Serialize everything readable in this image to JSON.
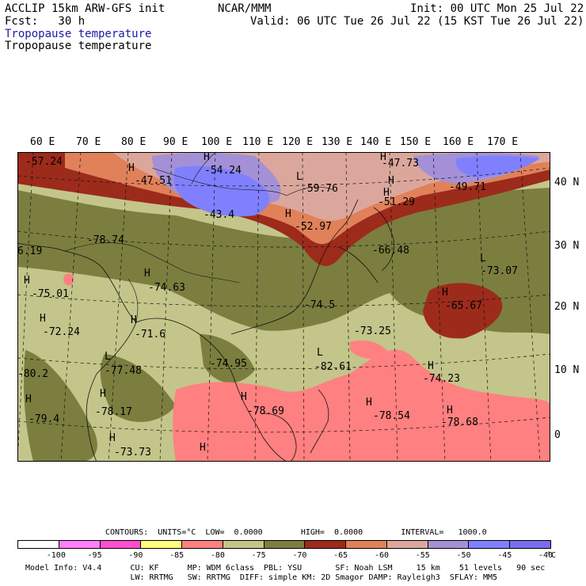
{
  "header": {
    "line1_left": "ACCLIP 15km ARW-GFS init",
    "line1_mid": "NCAR/MMM",
    "line1_right": "Init: 00 UTC Mon 25 Jul 22",
    "line2_left": "Fcst:   30 h",
    "line2_right": "Valid: 06 UTC Tue 26 Jul 22 (15 KST Tue 26 Jul 22)",
    "field1": "Tropopause temperature",
    "field2": "Tropopause temperature"
  },
  "map": {
    "lon_labels": [
      "60 E",
      "70 E",
      "80 E",
      "90 E",
      "100 E",
      "110 E",
      "120 E",
      "130 E",
      "140 E",
      "150 E",
      "160 E",
      "170 E"
    ],
    "lat_labels": [
      "40 N",
      "30 N",
      "20 N",
      "10 N",
      "0"
    ],
    "annotations": [
      {
        "text": "-57.24"
      },
      {
        "text": "H"
      },
      {
        "text": "-47.51"
      },
      {
        "text": "H"
      },
      {
        "text": "-54.24"
      },
      {
        "text": "L"
      },
      {
        "text": "-59.76"
      },
      {
        "text": "H"
      },
      {
        "text": "-47.73"
      },
      {
        "text": "H"
      },
      {
        "text": "-49.71"
      },
      {
        "text": "-43.4"
      },
      {
        "text": "H"
      },
      {
        "text": "-51.29"
      },
      {
        "text": "H"
      },
      {
        "text": "-52.97"
      },
      {
        "text": "-78.74"
      },
      {
        "text": "-66.48"
      },
      {
        "text": "L"
      },
      {
        "text": "-73.07"
      },
      {
        "text": "6.19"
      },
      {
        "text": "H"
      },
      {
        "text": "-74.63"
      },
      {
        "text": "H"
      },
      {
        "text": "-75.01"
      },
      {
        "text": "-74.5"
      },
      {
        "text": "H"
      },
      {
        "text": "-65.67"
      },
      {
        "text": "H"
      },
      {
        "text": "-72.24"
      },
      {
        "text": "H"
      },
      {
        "text": "-71.6"
      },
      {
        "text": "-73.25"
      },
      {
        "text": "L"
      },
      {
        "text": "-74.95"
      },
      {
        "text": "-82.61"
      },
      {
        "text": "H"
      },
      {
        "text": "L"
      },
      {
        "text": "-77.48"
      },
      {
        "text": "-74.23"
      },
      {
        "text": "-80.2"
      },
      {
        "text": "H"
      },
      {
        "text": "H"
      },
      {
        "text": "-78.69"
      },
      {
        "text": "H"
      },
      {
        "text": "-78.17"
      },
      {
        "text": "-78.54"
      },
      {
        "text": "H"
      },
      {
        "text": "-79.4"
      },
      {
        "text": "-78.68"
      },
      {
        "text": "H"
      },
      {
        "text": "-73.73"
      },
      {
        "text": "H"
      },
      {
        "text": "H"
      }
    ]
  },
  "colorbar": {
    "contours_text": "CONTOURS:  UNITS=°C  LOW=  0.0000        HIGH=  0.0000        INTERVAL=   1000.0",
    "unit": "°C",
    "bins": [
      {
        "label": "-100",
        "color": "#ffffff"
      },
      {
        "label": "-95",
        "color": "#ff7fff"
      },
      {
        "label": "-90",
        "color": "#ff4fcf"
      },
      {
        "label": "-85",
        "color": "#ffff80"
      },
      {
        "label": "-80",
        "color": "#ff8080"
      },
      {
        "label": "-75",
        "color": "#c3c58a"
      },
      {
        "label": "-70",
        "color": "#7b7e3f"
      },
      {
        "label": "-65",
        "color": "#9c2b1b"
      },
      {
        "label": "-60",
        "color": "#e0815a"
      },
      {
        "label": "-55",
        "color": "#dba79c"
      },
      {
        "label": "-50",
        "color": "#a390d6"
      },
      {
        "label": "-45",
        "color": "#8080ff"
      },
      {
        "label": "-40",
        "color": "#7b6df0"
      }
    ]
  },
  "footer": {
    "line1": "Model Info: V4.4      CU: KF      MP: WDM 6class  PBL: YSU       SF: Noah LSM     15 km    51 levels   90 sec",
    "line2": "                      LW: RRTMG   SW: RRTMG  DIFF: simple KM: 2D Smagor DAMP: Rayleigh3  SFLAY: MM5"
  }
}
